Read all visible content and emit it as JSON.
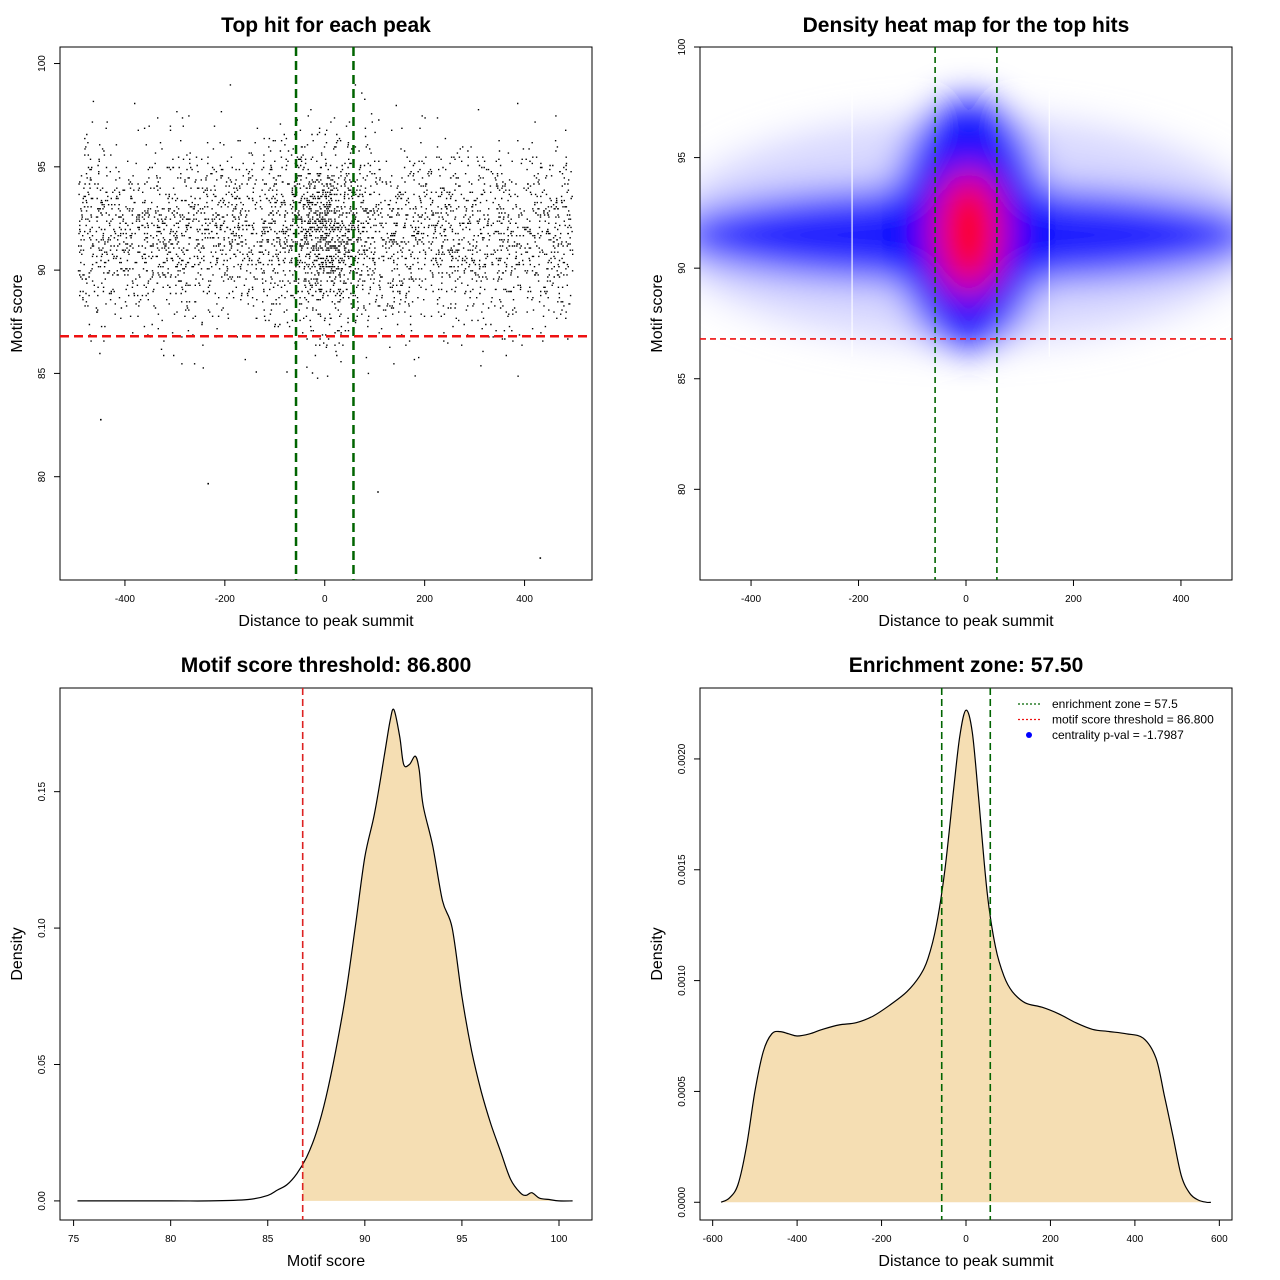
{
  "chart_data": [
    {
      "type": "scatter",
      "title": "Top hit for each peak",
      "xlabel": "Distance to peak summit",
      "ylabel": "Motif score",
      "xlim": [
        -530,
        535
      ],
      "ylim": [
        75,
        100.8
      ],
      "xticks": [
        -400,
        -200,
        0,
        200,
        400
      ],
      "yticks": [
        80,
        85,
        90,
        95,
        100
      ],
      "points_summary": {
        "x_range": [
          -495,
          495
        ],
        "y_core_range": [
          87,
          97
        ],
        "density_center": [
          0,
          92
        ],
        "notable_outliers": [
          [
            -450,
            82.8
          ],
          [
            -235,
            79.7
          ],
          [
            105,
            79.3
          ],
          [
            430,
            76.1
          ]
        ]
      },
      "hlines": [
        {
          "y": 86.8,
          "color": "#ee1111",
          "style": "dashed"
        }
      ],
      "vlines": [
        {
          "x": -57.5,
          "color": "#006400",
          "style": "dashed"
        },
        {
          "x": 57.5,
          "color": "#006400",
          "style": "dashed"
        }
      ]
    },
    {
      "type": "heatmap",
      "title": "Density heat map for the top hits",
      "xlabel": "Distance to peak summit",
      "ylabel": "Motif score",
      "xlim": [
        -495,
        495
      ],
      "ylim": [
        75.9,
        100
      ],
      "xticks": [
        -400,
        -200,
        0,
        200,
        400
      ],
      "yticks": [
        80,
        85,
        90,
        95,
        100
      ],
      "peak": {
        "x": 5,
        "y": 92
      },
      "colors": [
        "#ffffff",
        "#0000ff",
        "#ff0000"
      ],
      "hlines": [
        {
          "y": 86.8,
          "color": "#ee1111",
          "style": "dashed"
        }
      ],
      "vlines": [
        {
          "x": -57.5,
          "color": "#006400",
          "style": "dashed"
        },
        {
          "x": 57.5,
          "color": "#006400",
          "style": "dashed"
        }
      ]
    },
    {
      "type": "area",
      "title": "Motif score threshold: 86.800",
      "xlabel": "Motif score",
      "ylabel": "Density",
      "xlim": [
        74.3,
        101.7
      ],
      "ylim": [
        -0.007,
        0.188
      ],
      "xticks": [
        75,
        80,
        85,
        90,
        95,
        100
      ],
      "yticks": [
        0.0,
        0.05,
        0.1,
        0.15
      ],
      "ytick_labels": [
        "0.00",
        "0.05",
        "0.10",
        "0.15"
      ],
      "fill": "#f5deb3",
      "fill_from": 86.8,
      "x": [
        75.2,
        80,
        82,
        84,
        85,
        85.5,
        86,
        86.5,
        87,
        87.5,
        88,
        88.5,
        89,
        89.5,
        90,
        90.5,
        91,
        91.3,
        91.5,
        91.8,
        92,
        92.3,
        92.6,
        92.8,
        93,
        93.5,
        94,
        94.5,
        95,
        95.5,
        96,
        96.5,
        97,
        97.5,
        98,
        98.3,
        98.6,
        99,
        99.5,
        100,
        100.7
      ],
      "y": [
        0.0,
        0.0,
        0.0,
        0.0005,
        0.002,
        0.004,
        0.006,
        0.01,
        0.016,
        0.025,
        0.038,
        0.055,
        0.075,
        0.1,
        0.126,
        0.142,
        0.163,
        0.176,
        0.18,
        0.17,
        0.16,
        0.16,
        0.163,
        0.158,
        0.145,
        0.13,
        0.11,
        0.1,
        0.075,
        0.055,
        0.04,
        0.028,
        0.018,
        0.008,
        0.003,
        0.002,
        0.003,
        0.001,
        0.0005,
        0.0,
        0.0
      ],
      "vlines": [
        {
          "x": 86.8,
          "color": "#dd2222",
          "style": "dashed"
        }
      ]
    },
    {
      "type": "area",
      "title": "Enrichment zone: 57.50",
      "xlabel": "Distance to peak summit",
      "ylabel": "Density",
      "xlim": [
        -630,
        630
      ],
      "ylim": [
        -8e-05,
        0.00232
      ],
      "xticks": [
        -600,
        -400,
        -200,
        0,
        200,
        400,
        600
      ],
      "yticks": [
        0.0,
        0.0005,
        0.001,
        0.0015,
        0.002
      ],
      "ytick_labels": [
        "0.0000",
        "0.0005",
        "0.0010",
        "0.0015",
        "0.0020"
      ],
      "fill": "#f5deb3",
      "x": [
        -580,
        -560,
        -540,
        -520,
        -500,
        -480,
        -460,
        -440,
        -420,
        -400,
        -370,
        -340,
        -300,
        -260,
        -220,
        -180,
        -140,
        -110,
        -90,
        -70,
        -50,
        -30,
        -15,
        0,
        15,
        30,
        50,
        70,
        90,
        110,
        140,
        180,
        220,
        260,
        300,
        340,
        380,
        420,
        450,
        470,
        490,
        510,
        530,
        550,
        570,
        580
      ],
      "y": [
        0.0,
        2e-05,
        8e-05,
        0.00025,
        0.0005,
        0.00068,
        0.00076,
        0.00077,
        0.00076,
        0.00075,
        0.00076,
        0.00078,
        0.0008,
        0.00081,
        0.00084,
        0.00089,
        0.00095,
        0.00102,
        0.0011,
        0.00125,
        0.0015,
        0.00185,
        0.0021,
        0.00222,
        0.00212,
        0.00182,
        0.0014,
        0.00115,
        0.00102,
        0.00095,
        0.0009,
        0.00088,
        0.00085,
        0.00081,
        0.00078,
        0.00077,
        0.00076,
        0.00074,
        0.00065,
        0.00048,
        0.0003,
        0.00012,
        4e-05,
        1e-05,
        0.0,
        0.0
      ],
      "vlines": [
        {
          "x": -57.5,
          "color": "#006400",
          "style": "dashed"
        },
        {
          "x": 57.5,
          "color": "#006400",
          "style": "dashed"
        }
      ],
      "legend": {
        "position": "top-right",
        "entries": [
          {
            "label": "enrichment zone = 57.5",
            "color": "#006400",
            "kind": "dotted-line"
          },
          {
            "label": "motif score threshold = 86.800",
            "color": "#ee1111",
            "kind": "dotted-line"
          },
          {
            "label": "centrality p-val = -1.7987",
            "color": "#0000ff",
            "kind": "point"
          }
        ]
      }
    }
  ]
}
